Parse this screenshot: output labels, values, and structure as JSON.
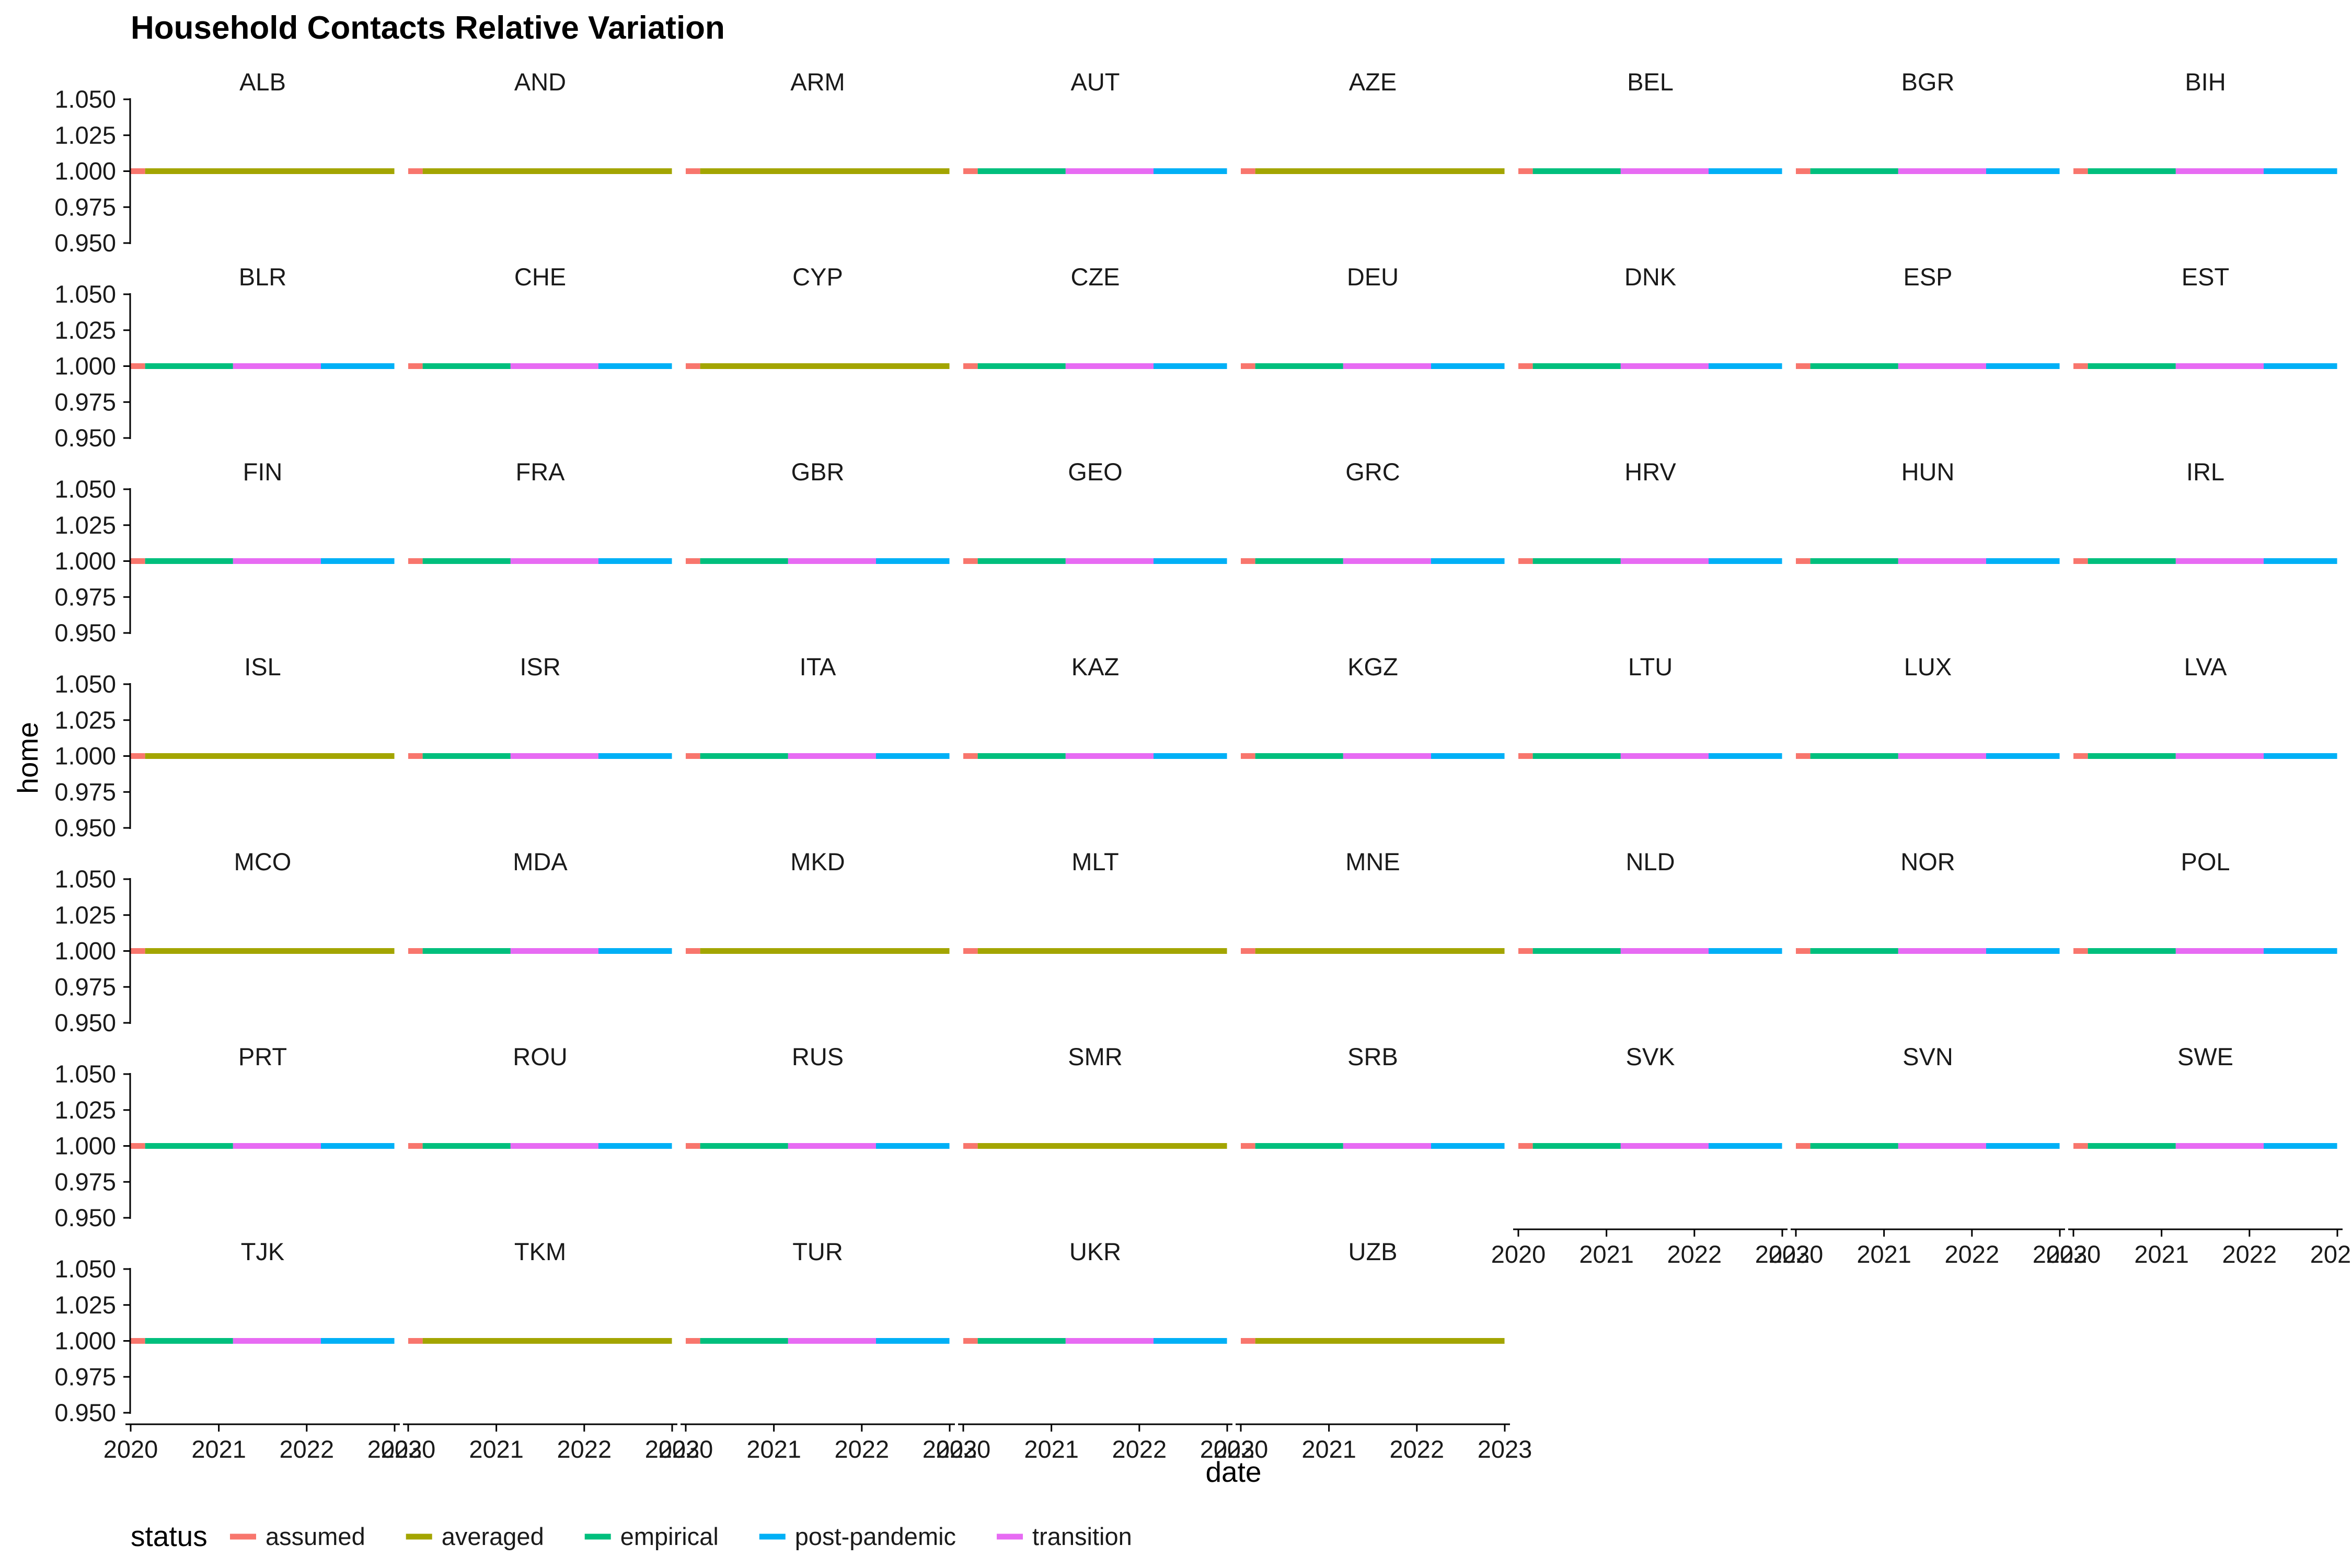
{
  "chart_data": {
    "type": "line",
    "title": "Household Contacts Relative Variation",
    "xlabel": "date",
    "ylabel": "home",
    "x_ticks": [
      "2020",
      "2021",
      "2022",
      "2023"
    ],
    "y_ticks": [
      "0.950",
      "0.975",
      "1.000",
      "1.025",
      "1.050"
    ],
    "xlim": [
      "2020-01-01",
      "2023-01-01"
    ],
    "ylim": [
      0.95,
      1.05
    ],
    "legend": {
      "title": "status",
      "position": "bottom",
      "items": [
        {
          "label": "assumed",
          "color": "#F8766D"
        },
        {
          "label": "averaged",
          "color": "#A3A500"
        },
        {
          "label": "empirical",
          "color": "#00BF7D"
        },
        {
          "label": "post-pandemic",
          "color": "#00B0F6"
        },
        {
          "label": "transition",
          "color": "#E76BF3"
        }
      ]
    },
    "pattern_four_phase": [
      {
        "status": "assumed",
        "x": [
          "2020-01-01",
          "2020-03-01"
        ],
        "y": [
          1.0,
          1.0
        ]
      },
      {
        "status": "empirical",
        "x": [
          "2020-03-01",
          "2021-03-01"
        ],
        "y": [
          1.0,
          1.0
        ]
      },
      {
        "status": "transition",
        "x": [
          "2021-03-01",
          "2022-03-01"
        ],
        "y": [
          1.0,
          1.0
        ]
      },
      {
        "status": "post-pandemic",
        "x": [
          "2022-03-01",
          "2022-12-31"
        ],
        "y": [
          1.0,
          1.0
        ]
      }
    ],
    "pattern_averaged": [
      {
        "status": "assumed",
        "x": [
          "2020-01-01",
          "2020-03-01"
        ],
        "y": [
          1.0,
          1.0
        ]
      },
      {
        "status": "averaged",
        "x": [
          "2020-03-01",
          "2022-12-31"
        ],
        "y": [
          1.0,
          1.0
        ]
      }
    ],
    "panels": [
      {
        "name": "ALB",
        "pattern": "averaged"
      },
      {
        "name": "AND",
        "pattern": "averaged"
      },
      {
        "name": "ARM",
        "pattern": "averaged"
      },
      {
        "name": "AUT",
        "pattern": "four_phase"
      },
      {
        "name": "AZE",
        "pattern": "averaged"
      },
      {
        "name": "BEL",
        "pattern": "four_phase"
      },
      {
        "name": "BGR",
        "pattern": "four_phase"
      },
      {
        "name": "BIH",
        "pattern": "four_phase"
      },
      {
        "name": "BLR",
        "pattern": "four_phase"
      },
      {
        "name": "CHE",
        "pattern": "four_phase"
      },
      {
        "name": "CYP",
        "pattern": "averaged"
      },
      {
        "name": "CZE",
        "pattern": "four_phase"
      },
      {
        "name": "DEU",
        "pattern": "four_phase"
      },
      {
        "name": "DNK",
        "pattern": "four_phase"
      },
      {
        "name": "ESP",
        "pattern": "four_phase"
      },
      {
        "name": "EST",
        "pattern": "four_phase"
      },
      {
        "name": "FIN",
        "pattern": "four_phase"
      },
      {
        "name": "FRA",
        "pattern": "four_phase"
      },
      {
        "name": "GBR",
        "pattern": "four_phase"
      },
      {
        "name": "GEO",
        "pattern": "four_phase"
      },
      {
        "name": "GRC",
        "pattern": "four_phase"
      },
      {
        "name": "HRV",
        "pattern": "four_phase"
      },
      {
        "name": "HUN",
        "pattern": "four_phase"
      },
      {
        "name": "IRL",
        "pattern": "four_phase"
      },
      {
        "name": "ISL",
        "pattern": "averaged"
      },
      {
        "name": "ISR",
        "pattern": "four_phase"
      },
      {
        "name": "ITA",
        "pattern": "four_phase"
      },
      {
        "name": "KAZ",
        "pattern": "four_phase"
      },
      {
        "name": "KGZ",
        "pattern": "four_phase"
      },
      {
        "name": "LTU",
        "pattern": "four_phase"
      },
      {
        "name": "LUX",
        "pattern": "four_phase"
      },
      {
        "name": "LVA",
        "pattern": "four_phase"
      },
      {
        "name": "MCO",
        "pattern": "averaged"
      },
      {
        "name": "MDA",
        "pattern": "four_phase"
      },
      {
        "name": "MKD",
        "pattern": "averaged"
      },
      {
        "name": "MLT",
        "pattern": "averaged"
      },
      {
        "name": "MNE",
        "pattern": "averaged"
      },
      {
        "name": "NLD",
        "pattern": "four_phase"
      },
      {
        "name": "NOR",
        "pattern": "four_phase"
      },
      {
        "name": "POL",
        "pattern": "four_phase"
      },
      {
        "name": "PRT",
        "pattern": "four_phase"
      },
      {
        "name": "ROU",
        "pattern": "four_phase"
      },
      {
        "name": "RUS",
        "pattern": "four_phase"
      },
      {
        "name": "SMR",
        "pattern": "averaged"
      },
      {
        "name": "SRB",
        "pattern": "four_phase"
      },
      {
        "name": "SVK",
        "pattern": "four_phase"
      },
      {
        "name": "SVN",
        "pattern": "four_phase"
      },
      {
        "name": "SWE",
        "pattern": "four_phase"
      },
      {
        "name": "TJK",
        "pattern": "four_phase"
      },
      {
        "name": "TKM",
        "pattern": "averaged"
      },
      {
        "name": "TUR",
        "pattern": "four_phase"
      },
      {
        "name": "UKR",
        "pattern": "four_phase"
      },
      {
        "name": "UZB",
        "pattern": "averaged"
      }
    ]
  }
}
